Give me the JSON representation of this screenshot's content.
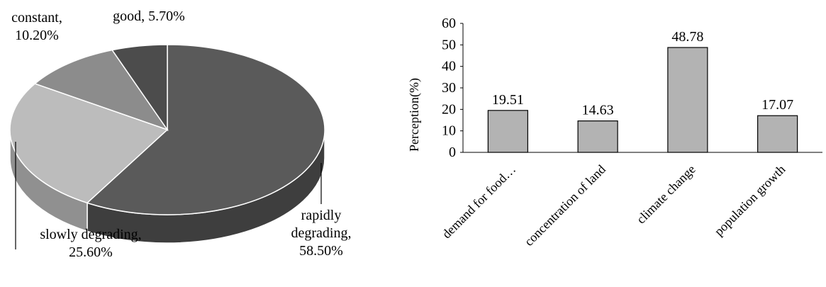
{
  "chart_data": [
    {
      "type": "pie",
      "style": "3d",
      "slices": [
        {
          "label_lines": [
            "rapidly",
            "degrading,",
            "58.50%"
          ],
          "value": 58.5,
          "color": "#5a5a5a",
          "side_color": "#3e3e3e"
        },
        {
          "label_lines": [
            "slowly degrading,",
            "25.60%"
          ],
          "value": 25.6,
          "color": "#bcbcbc",
          "side_color": "#909090"
        },
        {
          "label_lines": [
            "constant,",
            "10.20%"
          ],
          "value": 10.2,
          "color": "#8c8c8c",
          "side_color": "#6a6a6a"
        },
        {
          "label_lines": [
            "good, 5.70%"
          ],
          "value": 5.7,
          "color": "#4c4c4c",
          "side_color": "#333333"
        }
      ],
      "legend": "none"
    },
    {
      "type": "bar",
      "categories": [
        "demand for food…",
        "concentration of land",
        "climate change",
        "population growth"
      ],
      "values": [
        19.51,
        14.63,
        48.78,
        17.07
      ],
      "value_labels": [
        "19.51",
        "14.63",
        "48.78",
        "17.07"
      ],
      "ylabel": "Perception(%)",
      "xlabel": "",
      "ylim": [
        0,
        60
      ],
      "yticks": [
        "0",
        "10",
        "20",
        "30",
        "40",
        "50",
        "60"
      ],
      "bar_color": "#b3b3b3",
      "grid": false,
      "legend": "none"
    }
  ]
}
